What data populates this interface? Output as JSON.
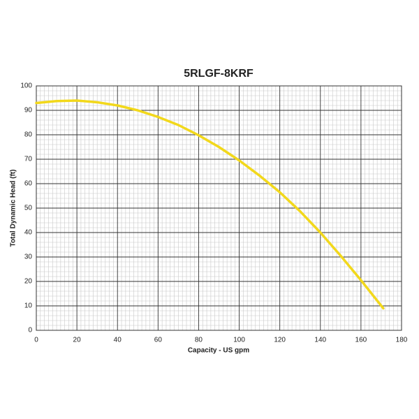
{
  "chart_data": {
    "type": "line",
    "title": "5RLGF-8KRF",
    "x_label": "Capacity - US gpm",
    "y_label": "Total Dynamic Head (ft)",
    "xlim": [
      0,
      180
    ],
    "xticks": [
      0,
      20,
      40,
      60,
      80,
      100,
      120,
      140,
      160,
      180
    ],
    "ylim": [
      0,
      100
    ],
    "yticks": [
      0,
      10,
      20,
      30,
      40,
      50,
      60,
      70,
      80,
      90,
      100
    ],
    "grid": true,
    "series": [
      {
        "name": "5RLGF-8KRF",
        "color": "#f2d81b",
        "x": [
          0,
          10,
          20,
          30,
          40,
          50,
          60,
          70,
          80,
          90,
          100,
          110,
          120,
          130,
          140,
          150,
          160,
          171
        ],
        "values": [
          93,
          93.8,
          94,
          93.3,
          92,
          90,
          87.3,
          84,
          79.8,
          75,
          69.5,
          63.3,
          56.5,
          48.7,
          40,
          30.5,
          20.5,
          9
        ]
      }
    ]
  }
}
